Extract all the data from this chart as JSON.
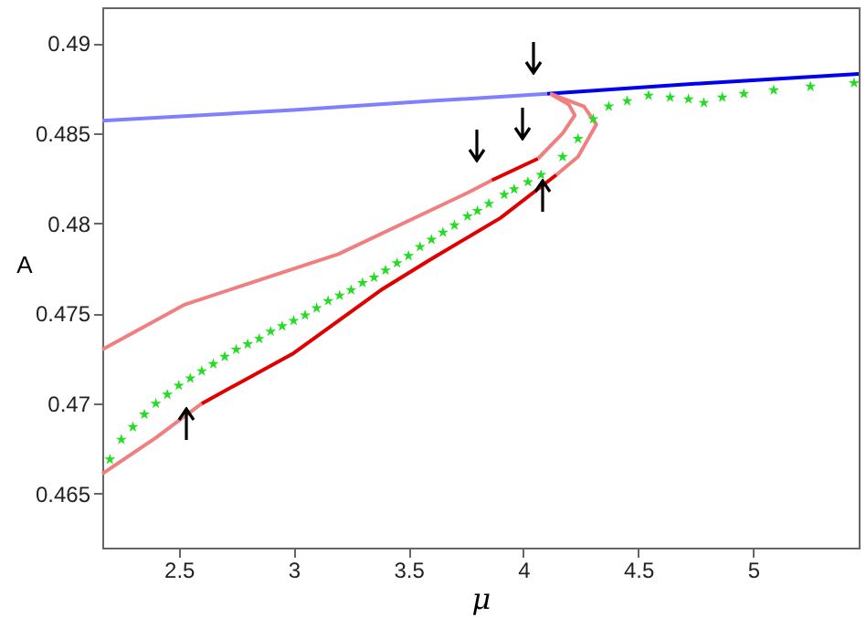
{
  "chart_data": {
    "type": "line",
    "xlabel": "μ",
    "ylabel": "A",
    "xlim": [
      2.167,
      5.46
    ],
    "ylim": [
      0.462,
      0.492
    ],
    "xticks": [
      2.5,
      3,
      3.5,
      4,
      4.5,
      5
    ],
    "yticks": [
      0.465,
      0.47,
      0.475,
      0.48,
      0.485,
      0.49
    ],
    "grid": false,
    "legend": false,
    "series": [
      {
        "color": "#8080ff",
        "x": [
          2.167,
          3.0,
          3.6,
          4.104
        ],
        "values": [
          0.4857,
          0.4863,
          0.4868,
          0.4872
        ]
      },
      {
        "color": "#0000ee",
        "x": [
          4.104,
          4.8,
          5.46
        ],
        "values": [
          0.4872,
          0.4878,
          0.4883
        ]
      },
      {
        "color": "#f08080",
        "x": [
          2.167,
          2.4,
          2.6
        ],
        "values": [
          0.4661,
          0.4681,
          0.47
        ]
      },
      {
        "color": "#e00000",
        "x": [
          2.6,
          3.0,
          3.38,
          3.596,
          3.9,
          4.144
        ],
        "values": [
          0.47,
          0.4728,
          0.4763,
          0.478,
          0.4803,
          0.4827
        ]
      },
      {
        "color": "#f08080",
        "x": [
          4.144,
          4.238,
          4.318,
          4.264,
          4.117
        ],
        "values": [
          0.4827,
          0.4837,
          0.4855,
          0.4865,
          0.4872
        ]
      },
      {
        "color": "#f08080",
        "x": [
          2.167,
          2.527,
          3.195,
          3.757,
          3.863
        ],
        "values": [
          0.473,
          0.4755,
          0.4783,
          0.4817,
          0.4824
        ]
      },
      {
        "color": "#e00000",
        "x": [
          3.863,
          4.064
        ],
        "values": [
          0.4824,
          0.4836
        ]
      },
      {
        "color": "#f08080",
        "x": [
          4.064,
          4.171,
          4.224,
          4.198,
          4.117
        ],
        "values": [
          0.4836,
          0.485,
          0.486,
          0.4866,
          0.4872
        ]
      },
      {
        "type": "scatter",
        "marker": "star",
        "color": "#22dd22",
        "x": [
          2.2,
          2.25,
          2.3,
          2.35,
          2.4,
          2.45,
          2.5,
          2.55,
          2.6,
          2.65,
          2.7,
          2.75,
          2.8,
          2.85,
          2.9,
          2.95,
          3.0,
          3.05,
          3.1,
          3.15,
          3.2,
          3.25,
          3.3,
          3.35,
          3.4,
          3.45,
          3.5,
          3.55,
          3.6,
          3.65,
          3.7,
          3.757,
          3.8,
          3.85,
          3.917,
          3.96,
          4.02,
          4.077,
          4.171,
          4.238,
          4.304,
          4.372,
          4.452,
          4.545,
          4.639,
          4.719,
          4.786,
          4.866,
          4.96,
          5.09,
          5.25,
          5.44
        ],
        "values": [
          0.4669,
          0.468,
          0.4687,
          0.4694,
          0.47,
          0.4705,
          0.471,
          0.4714,
          0.4718,
          0.4722,
          0.4726,
          0.473,
          0.4733,
          0.4736,
          0.474,
          0.4743,
          0.4746,
          0.4749,
          0.4753,
          0.4757,
          0.476,
          0.4763,
          0.4767,
          0.477,
          0.4774,
          0.4778,
          0.4782,
          0.4787,
          0.4791,
          0.4795,
          0.4799,
          0.4804,
          0.4807,
          0.4811,
          0.4816,
          0.4819,
          0.4823,
          0.4827,
          0.4837,
          0.4847,
          0.4858,
          0.4865,
          0.4868,
          0.4871,
          0.487,
          0.4869,
          0.4867,
          0.487,
          0.4872,
          0.4874,
          0.4876,
          0.4878
        ]
      }
    ]
  }
}
